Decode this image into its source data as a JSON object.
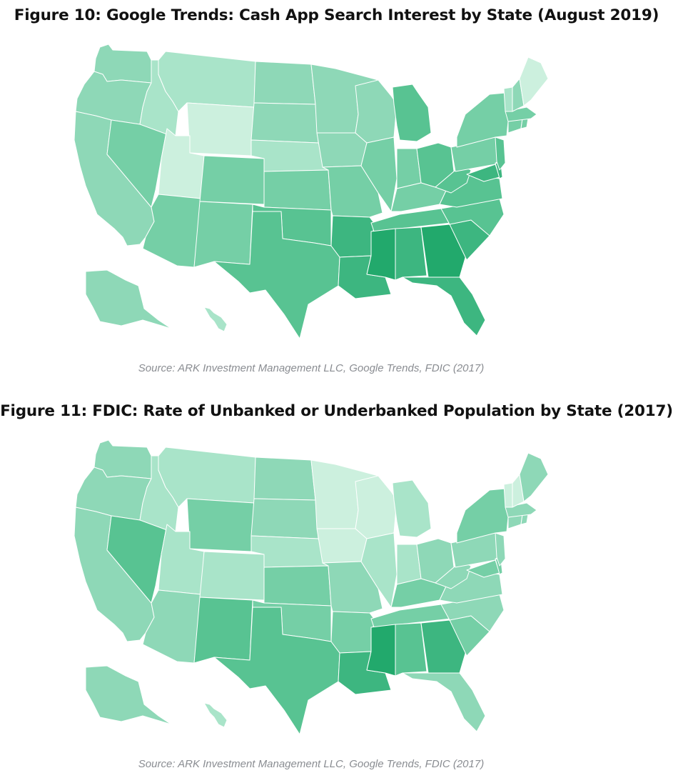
{
  "figure10": {
    "title": "Figure 10: Google Trends: Cash App Search Interest by State (August 2019)",
    "source": "Source: ARK Investment Management LLC, Google Trends, FDIC (2017)"
  },
  "figure11": {
    "title": "Figure 11: FDIC: Rate of Unbanked or Underbanked Population by State (2017)",
    "source": "Source: ARK Investment Management LLC, Google Trends, FDIC (2017)"
  },
  "colors": {
    "1": "#ccf0de",
    "2": "#a9e4c9",
    "3": "#8ed8b7",
    "4": "#75cfa6",
    "5": "#58c392",
    "6": "#3db680",
    "7": "#22a96c"
  },
  "chart_data": [
    {
      "type": "choropleth",
      "title": "Figure 10: Google Trends: Cash App Search Interest by State (August 2019)",
      "scale": "relative shade 1 (lightest) to 7 (darkest)",
      "values": {
        "WA": 3,
        "OR": 3,
        "CA": 3,
        "NV": 4,
        "ID": 2,
        "MT": 2,
        "WY": 1,
        "UT": 1,
        "AZ": 4,
        "CO": 4,
        "NM": 4,
        "ND": 3,
        "SD": 3,
        "NE": 2,
        "KS": 4,
        "OK": 5,
        "TX": 5,
        "MN": 3,
        "IA": 3,
        "MO": 4,
        "AR": 6,
        "LA": 6,
        "WI": 3,
        "IL": 4,
        "MI": 5,
        "IN": 4,
        "OH": 5,
        "KY": 4,
        "TN": 5,
        "MS": 7,
        "AL": 6,
        "GA": 7,
        "FL": 6,
        "SC": 6,
        "NC": 5,
        "VA": 5,
        "WV": 5,
        "MD": 6,
        "DE": 6,
        "PA": 4,
        "NJ": 5,
        "NY": 4,
        "CT": 4,
        "RI": 4,
        "MA": 4,
        "VT": 2,
        "NH": 3,
        "ME": 1,
        "AK": 3,
        "HI": 2
      }
    },
    {
      "type": "choropleth",
      "title": "Figure 11: FDIC: Rate of Unbanked or Underbanked Population by State (2017)",
      "scale": "relative shade 1 (lightest) to 7 (darkest)",
      "values": {
        "WA": 3,
        "OR": 3,
        "CA": 3,
        "NV": 5,
        "ID": 2,
        "MT": 2,
        "WY": 4,
        "UT": 2,
        "AZ": 3,
        "CO": 2,
        "NM": 5,
        "ND": 3,
        "SD": 3,
        "NE": 2,
        "KS": 4,
        "OK": 4,
        "TX": 5,
        "MN": 1,
        "IA": 1,
        "MO": 3,
        "AR": 4,
        "LA": 6,
        "WI": 1,
        "IL": 2,
        "MI": 2,
        "IN": 2,
        "OH": 3,
        "KY": 4,
        "TN": 4,
        "MS": 7,
        "AL": 5,
        "GA": 6,
        "FL": 3,
        "SC": 4,
        "NC": 3,
        "VA": 3,
        "WV": 3,
        "MD": 4,
        "DE": 4,
        "PA": 3,
        "NJ": 3,
        "NY": 4,
        "CT": 3,
        "RI": 3,
        "MA": 3,
        "VT": 1,
        "NH": 1,
        "ME": 3,
        "AK": 3,
        "HI": 2
      }
    }
  ]
}
